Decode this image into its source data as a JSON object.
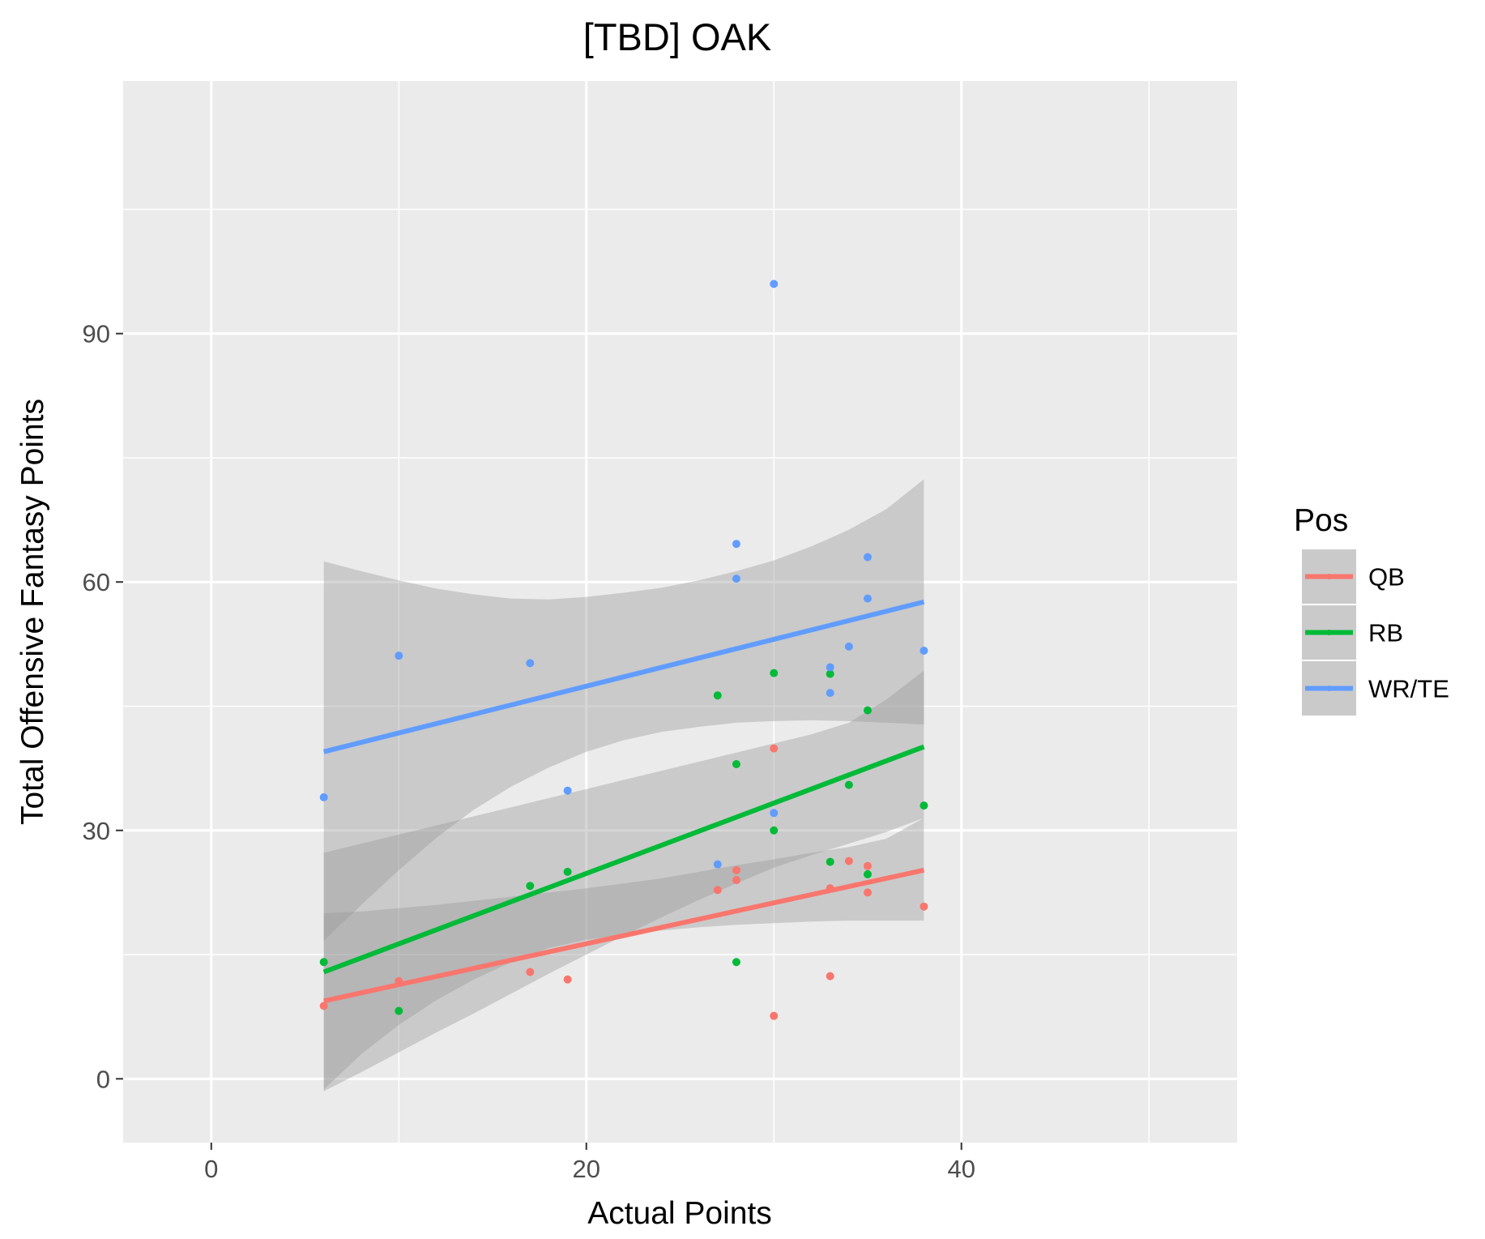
{
  "chart_data": {
    "type": "scatter",
    "title": "[TBD] OAK",
    "xlabel": "Actual Points",
    "ylabel": "Total Offensive Fantasy Points",
    "xlim": [
      -4.7,
      54.7
    ],
    "ylim": [
      -7.7,
      120.5
    ],
    "x_ticks": [
      0,
      20,
      40
    ],
    "y_ticks": [
      0,
      30,
      60,
      90
    ],
    "grid": true,
    "legend": {
      "title": "Pos",
      "position": "right"
    },
    "series": [
      {
        "name": "QB",
        "color": "#F8766D",
        "points": [
          [
            6,
            8.8
          ],
          [
            10,
            11.8
          ],
          [
            17,
            12.9
          ],
          [
            19,
            12.0
          ],
          [
            27,
            22.8
          ],
          [
            28,
            25.2
          ],
          [
            28,
            24.0
          ],
          [
            30,
            39.9
          ],
          [
            30,
            7.6
          ],
          [
            33,
            23.0
          ],
          [
            33,
            12.4
          ],
          [
            34,
            26.3
          ],
          [
            35,
            25.7
          ],
          [
            35,
            22.5
          ],
          [
            38,
            20.8
          ]
        ],
        "fit": {
          "x": [
            6,
            38
          ],
          "y": [
            9.4,
            25.2
          ]
        },
        "band": {
          "x": [
            6,
            8,
            10,
            12,
            14,
            16,
            18,
            20,
            22,
            24,
            26,
            28,
            30,
            32,
            34,
            36,
            38
          ],
          "lower": [
            -1.3,
            3.0,
            6.5,
            9.5,
            12.0,
            14.1,
            15.8,
            16.8,
            17.4,
            17.9,
            18.3,
            18.6,
            18.8,
            19.0,
            19.1,
            19.1,
            19.1
          ],
          "upper": [
            20.0,
            20.2,
            20.6,
            21.0,
            21.5,
            22.0,
            22.5,
            23.0,
            23.6,
            24.2,
            25.0,
            25.8,
            26.5,
            27.3,
            28.0,
            29.0,
            31.5
          ]
        }
      },
      {
        "name": "RB",
        "color": "#00BA38",
        "points": [
          [
            6,
            14.1
          ],
          [
            10,
            8.2
          ],
          [
            17,
            23.3
          ],
          [
            19,
            25.0
          ],
          [
            27,
            46.3
          ],
          [
            28,
            38.0
          ],
          [
            28,
            14.1
          ],
          [
            30,
            49.0
          ],
          [
            30,
            30.0
          ],
          [
            33,
            48.9
          ],
          [
            33,
            26.2
          ],
          [
            34,
            35.5
          ],
          [
            35,
            44.5
          ],
          [
            35,
            24.7
          ],
          [
            38,
            33.0
          ]
        ],
        "fit": {
          "x": [
            6,
            38
          ],
          "y": [
            12.9,
            40.1
          ]
        },
        "band": {
          "x": [
            6,
            8,
            10,
            12,
            14,
            16,
            18,
            20,
            22,
            24,
            26,
            28,
            30,
            32,
            34,
            36,
            38
          ],
          "lower": [
            -1.5,
            0.8,
            3.2,
            5.6,
            7.9,
            10.3,
            12.7,
            15.0,
            17.3,
            19.5,
            21.6,
            23.6,
            25.5,
            27.0,
            28.4,
            29.8,
            31.5
          ],
          "upper": [
            27.3,
            28.4,
            29.5,
            30.6,
            31.7,
            32.8,
            33.9,
            35.0,
            36.1,
            37.2,
            38.3,
            39.4,
            40.5,
            41.6,
            43.0,
            45.8,
            49.3
          ]
        }
      },
      {
        "name": "WR/TE",
        "color": "#619CFF",
        "points": [
          [
            6,
            34.0
          ],
          [
            10,
            51.1
          ],
          [
            17,
            50.2
          ],
          [
            19,
            34.8
          ],
          [
            27,
            25.9
          ],
          [
            28,
            64.6
          ],
          [
            28,
            60.4
          ],
          [
            30,
            96.0
          ],
          [
            30,
            32.1
          ],
          [
            33,
            49.7
          ],
          [
            33,
            46.6
          ],
          [
            34,
            52.2
          ],
          [
            35,
            63.0
          ],
          [
            35,
            58.0
          ],
          [
            38,
            51.7
          ]
        ],
        "fit": {
          "x": [
            6,
            38
          ],
          "y": [
            39.5,
            57.6
          ]
        },
        "band": {
          "x": [
            6,
            8,
            10,
            12,
            14,
            16,
            18,
            20,
            22,
            24,
            26,
            28,
            30,
            32,
            34,
            36,
            38
          ],
          "lower": [
            16.7,
            21.0,
            25.2,
            29.1,
            32.5,
            35.3,
            37.6,
            39.5,
            40.9,
            41.9,
            42.5,
            43.0,
            43.2,
            43.3,
            43.2,
            43.0,
            42.8
          ],
          "upper": [
            62.5,
            61.3,
            60.2,
            59.2,
            58.5,
            58.0,
            57.9,
            58.2,
            58.7,
            59.3,
            60.2,
            61.3,
            62.6,
            64.3,
            66.3,
            68.8,
            72.4
          ]
        }
      }
    ]
  }
}
